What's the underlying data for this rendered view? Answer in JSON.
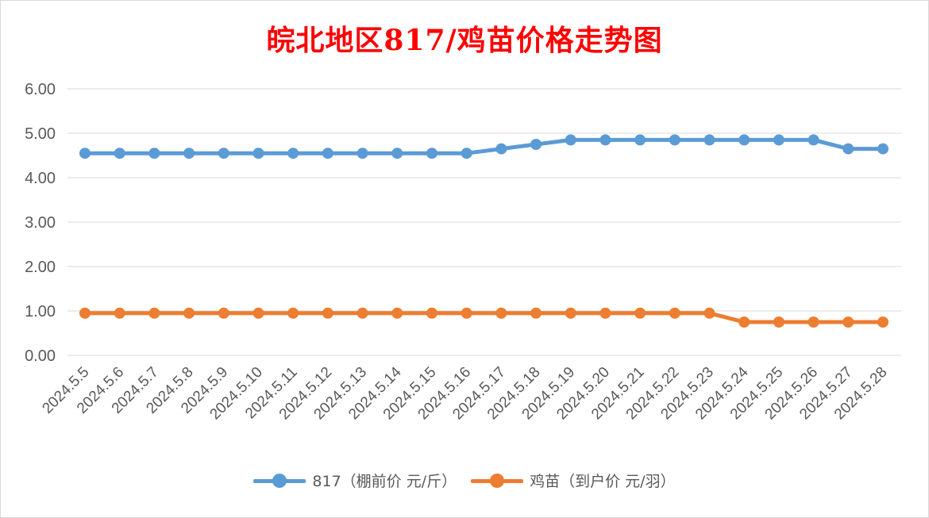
{
  "chart_data": {
    "type": "line",
    "title": "皖北地区817/鸡苗价格走势图",
    "xlabel": "",
    "ylabel": "",
    "ylim": [
      0,
      6
    ],
    "yticks": [
      "0.00",
      "1.00",
      "2.00",
      "3.00",
      "4.00",
      "5.00",
      "6.00"
    ],
    "grid": true,
    "legend_position": "bottom",
    "categories": [
      "2024.5.5",
      "2024.5.6",
      "2024.5.7",
      "2024.5.8",
      "2024.5.9",
      "2024.5.10",
      "2024.5.11",
      "2024.5.12",
      "2024.5.13",
      "2024.5.14",
      "2024.5.15",
      "2024.5.16",
      "2024.5.17",
      "2024.5.18",
      "2024.5.19",
      "2024.5.20",
      "2024.5.21",
      "2024.5.22",
      "2024.5.23",
      "2024.5.24",
      "2024.5.25",
      "2024.5.26",
      "2024.5.27",
      "2024.5.28"
    ],
    "series": [
      {
        "name": "817（棚前价 元/斤）",
        "color": "#5b9bd5",
        "values": [
          4.55,
          4.55,
          4.55,
          4.55,
          4.55,
          4.55,
          4.55,
          4.55,
          4.55,
          4.55,
          4.55,
          4.55,
          4.65,
          4.75,
          4.85,
          4.85,
          4.85,
          4.85,
          4.85,
          4.85,
          4.85,
          4.85,
          4.65,
          4.65
        ]
      },
      {
        "name": "鸡苗（到户价 元/羽）",
        "color": "#ed7d31",
        "values": [
          0.95,
          0.95,
          0.95,
          0.95,
          0.95,
          0.95,
          0.95,
          0.95,
          0.95,
          0.95,
          0.95,
          0.95,
          0.95,
          0.95,
          0.95,
          0.95,
          0.95,
          0.95,
          0.95,
          0.75,
          0.75,
          0.75,
          0.75,
          0.75
        ]
      }
    ]
  }
}
